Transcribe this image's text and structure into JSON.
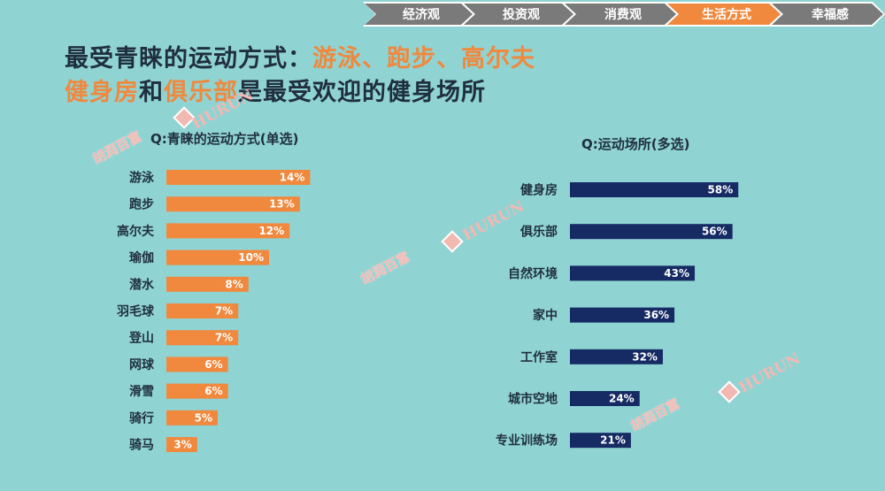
{
  "nav": {
    "items": [
      {
        "label": "经济观",
        "active": false
      },
      {
        "label": "投资观",
        "active": false
      },
      {
        "label": "消费观",
        "active": false
      },
      {
        "label": "生活方式",
        "active": true
      },
      {
        "label": "幸福感",
        "active": false
      }
    ]
  },
  "headline": {
    "line1_a": "最受青睐的运动方式：",
    "line1_b": "游泳、跑步、高尔夫",
    "line2_a": "健身房",
    "line2_b": "和",
    "line2_c": "俱乐部",
    "line2_d": "是最受欢迎的健身场所"
  },
  "watermarks": {
    "cn": "胡润百富",
    "en": "HURUN"
  },
  "colors": {
    "background": "#8fd3d3",
    "accent_orange": "#f0883e",
    "navy": "#162a64",
    "nav_gray": "#7a7a7a"
  },
  "chart_data": [
    {
      "type": "bar",
      "orientation": "horizontal",
      "title": "Q:青睐的运动方式(单选)",
      "categories": [
        "游泳",
        "跑步",
        "高尔夫",
        "瑜伽",
        "潜水",
        "羽毛球",
        "登山",
        "网球",
        "滑雪",
        "骑行",
        "骑马"
      ],
      "values": [
        14,
        13,
        12,
        10,
        8,
        7,
        7,
        6,
        6,
        5,
        3
      ],
      "value_labels": [
        "14%",
        "13%",
        "12%",
        "10%",
        "8%",
        "7%",
        "7%",
        "6%",
        "6%",
        "5%",
        "3%"
      ],
      "unit": "%",
      "color": "#f0883e"
    },
    {
      "type": "bar",
      "orientation": "horizontal",
      "title": "Q:运动场所(多选)",
      "categories": [
        "健身房",
        "俱乐部",
        "自然环境",
        "家中",
        "工作室",
        "城市空地",
        "专业训练场"
      ],
      "values": [
        58,
        56,
        43,
        36,
        32,
        24,
        21
      ],
      "value_labels": [
        "58%",
        "56%",
        "43%",
        "36%",
        "32%",
        "24%",
        "21%"
      ],
      "unit": "%",
      "color": "#162a64"
    }
  ]
}
